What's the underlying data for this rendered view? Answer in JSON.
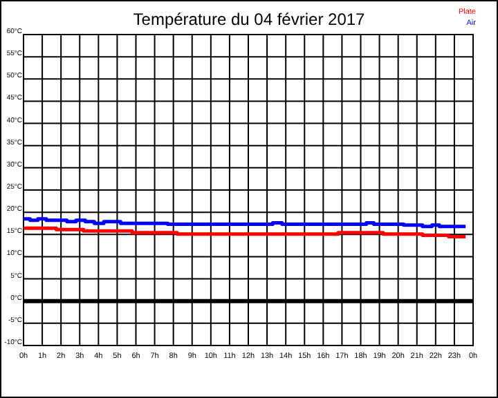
{
  "chart_data": {
    "type": "step",
    "title": "Température du 04 février 2017",
    "xlim": [
      "2017-02-04T00:00",
      "2017-02-05T00:00"
    ],
    "ylim": [
      -10,
      60
    ],
    "xticks": [
      {
        "value": "2017-02-04T00:00",
        "label": "0h"
      },
      {
        "value": "2017-02-04T01:00",
        "label": "1h"
      },
      {
        "value": "2017-02-04T02:00",
        "label": "2h"
      },
      {
        "value": "2017-02-04T03:00",
        "label": "3h"
      },
      {
        "value": "2017-02-04T04:00",
        "label": "4h"
      },
      {
        "value": "2017-02-04T05:00",
        "label": "5h"
      },
      {
        "value": "2017-02-04T06:00",
        "label": "6h"
      },
      {
        "value": "2017-02-04T07:00",
        "label": "7h"
      },
      {
        "value": "2017-02-04T08:00",
        "label": "8h"
      },
      {
        "value": "2017-02-04T09:00",
        "label": "9h"
      },
      {
        "value": "2017-02-04T10:00",
        "label": "10h"
      },
      {
        "value": "2017-02-04T11:00",
        "label": "11h"
      },
      {
        "value": "2017-02-04T12:00",
        "label": "12h"
      },
      {
        "value": "2017-02-04T13:00",
        "label": "13h"
      },
      {
        "value": "2017-02-04T14:00",
        "label": "14h"
      },
      {
        "value": "2017-02-04T15:00",
        "label": "15h"
      },
      {
        "value": "2017-02-04T16:00",
        "label": "16h"
      },
      {
        "value": "2017-02-04T17:00",
        "label": "17h"
      },
      {
        "value": "2017-02-04T18:00",
        "label": "18h"
      },
      {
        "value": "2017-02-04T19:00",
        "label": "19h"
      },
      {
        "value": "2017-02-04T20:00",
        "label": "20h"
      },
      {
        "value": "2017-02-04T21:00",
        "label": "21h"
      },
      {
        "value": "2017-02-04T22:00",
        "label": "22h"
      },
      {
        "value": "2017-02-04T23:00",
        "label": "23h"
      },
      {
        "value": "2017-02-05T00:00",
        "label": "0h"
      }
    ],
    "yticks": [
      {
        "value": -10,
        "label": "-10°C"
      },
      {
        "value": -5,
        "label": "-5°C"
      },
      {
        "value": 0,
        "label": "0°C"
      },
      {
        "value": 5,
        "label": "5°C"
      },
      {
        "value": 10,
        "label": "10°C"
      },
      {
        "value": 15,
        "label": "15°C"
      },
      {
        "value": 20,
        "label": "20°C"
      },
      {
        "value": 25,
        "label": "25°C"
      },
      {
        "value": 30,
        "label": "30°C"
      },
      {
        "value": 35,
        "label": "35°C"
      },
      {
        "value": 40,
        "label": "40°C"
      },
      {
        "value": 45,
        "label": "45°C"
      },
      {
        "value": 50,
        "label": "50°C"
      },
      {
        "value": 55,
        "label": "55°C"
      },
      {
        "value": 60,
        "label": "60°C"
      }
    ],
    "grid": true,
    "legend": "top right",
    "ref_lines": [
      {
        "axis": "y",
        "value": 0,
        "color": "#000000"
      }
    ],
    "series": [
      {
        "name": "Plate",
        "color": "#ff0000",
        "x": [
          "2017-02-04T00:00",
          "2017-02-04T01:45",
          "2017-02-04T03:12",
          "2017-02-04T05:48",
          "2017-02-04T08:12",
          "2017-02-04T16:48",
          "2017-02-04T19:12",
          "2017-02-04T21:18",
          "2017-02-04T22:42",
          "2017-02-04T23:36"
        ],
        "values": [
          16.4,
          16.1,
          15.8,
          15.4,
          15.1,
          15.4,
          15.1,
          14.8,
          14.5,
          14.5
        ]
      },
      {
        "name": "Air",
        "color": "#0000ff",
        "x": [
          "2017-02-04T00:00",
          "2017-02-04T00:21",
          "2017-02-04T00:46",
          "2017-02-04T01:13",
          "2017-02-04T02:19",
          "2017-02-04T02:48",
          "2017-02-04T03:18",
          "2017-02-04T03:47",
          "2017-02-04T04:17",
          "2017-02-04T05:11",
          "2017-02-04T07:42",
          "2017-02-04T13:18",
          "2017-02-04T13:48",
          "2017-02-04T18:18",
          "2017-02-04T18:42",
          "2017-02-04T20:18",
          "2017-02-04T21:18",
          "2017-02-04T21:48",
          "2017-02-04T22:12",
          "2017-02-04T23:36"
        ],
        "values": [
          18.5,
          18.2,
          18.5,
          18.2,
          17.9,
          18.2,
          17.9,
          17.5,
          17.9,
          17.5,
          17.3,
          17.6,
          17.3,
          17.6,
          17.3,
          17.1,
          16.8,
          17.1,
          16.8,
          16.8
        ]
      }
    ]
  }
}
